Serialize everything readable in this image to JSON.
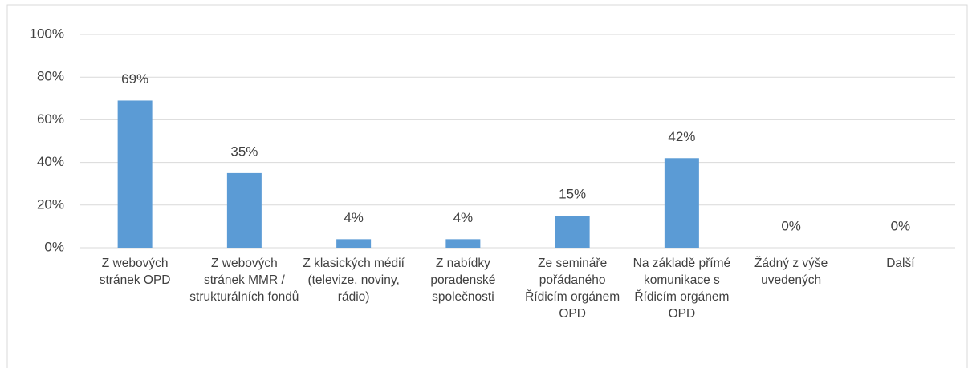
{
  "chart_data": {
    "type": "bar",
    "categories": [
      "Z webových stránek OPD",
      "Z webových stránek MMR / strukturálních fondů",
      "Z klasických médií (televize, noviny, rádio)",
      "Z nabídky poradenské společnosti",
      "Ze semináře pořádaného Řídicím orgánem OPD",
      "Na základě přímé komunikace s Řídicím orgánem OPD",
      "Žádný z výše uvedených",
      "Další"
    ],
    "values": [
      69,
      35,
      4,
      4,
      15,
      42,
      0,
      0
    ],
    "value_labels": [
      "69%",
      "35%",
      "4%",
      "4%",
      "15%",
      "42%",
      "0%",
      "0%"
    ],
    "color": "#5b9bd5",
    "ylim": [
      0,
      100
    ],
    "yticks": [
      {
        "value": 0,
        "label": "0%"
      },
      {
        "value": 20,
        "label": "20%"
      },
      {
        "value": 40,
        "label": "40%"
      },
      {
        "value": 60,
        "label": "60%"
      },
      {
        "value": 80,
        "label": "80%"
      },
      {
        "value": 100,
        "label": "100%"
      }
    ],
    "grid": true
  }
}
